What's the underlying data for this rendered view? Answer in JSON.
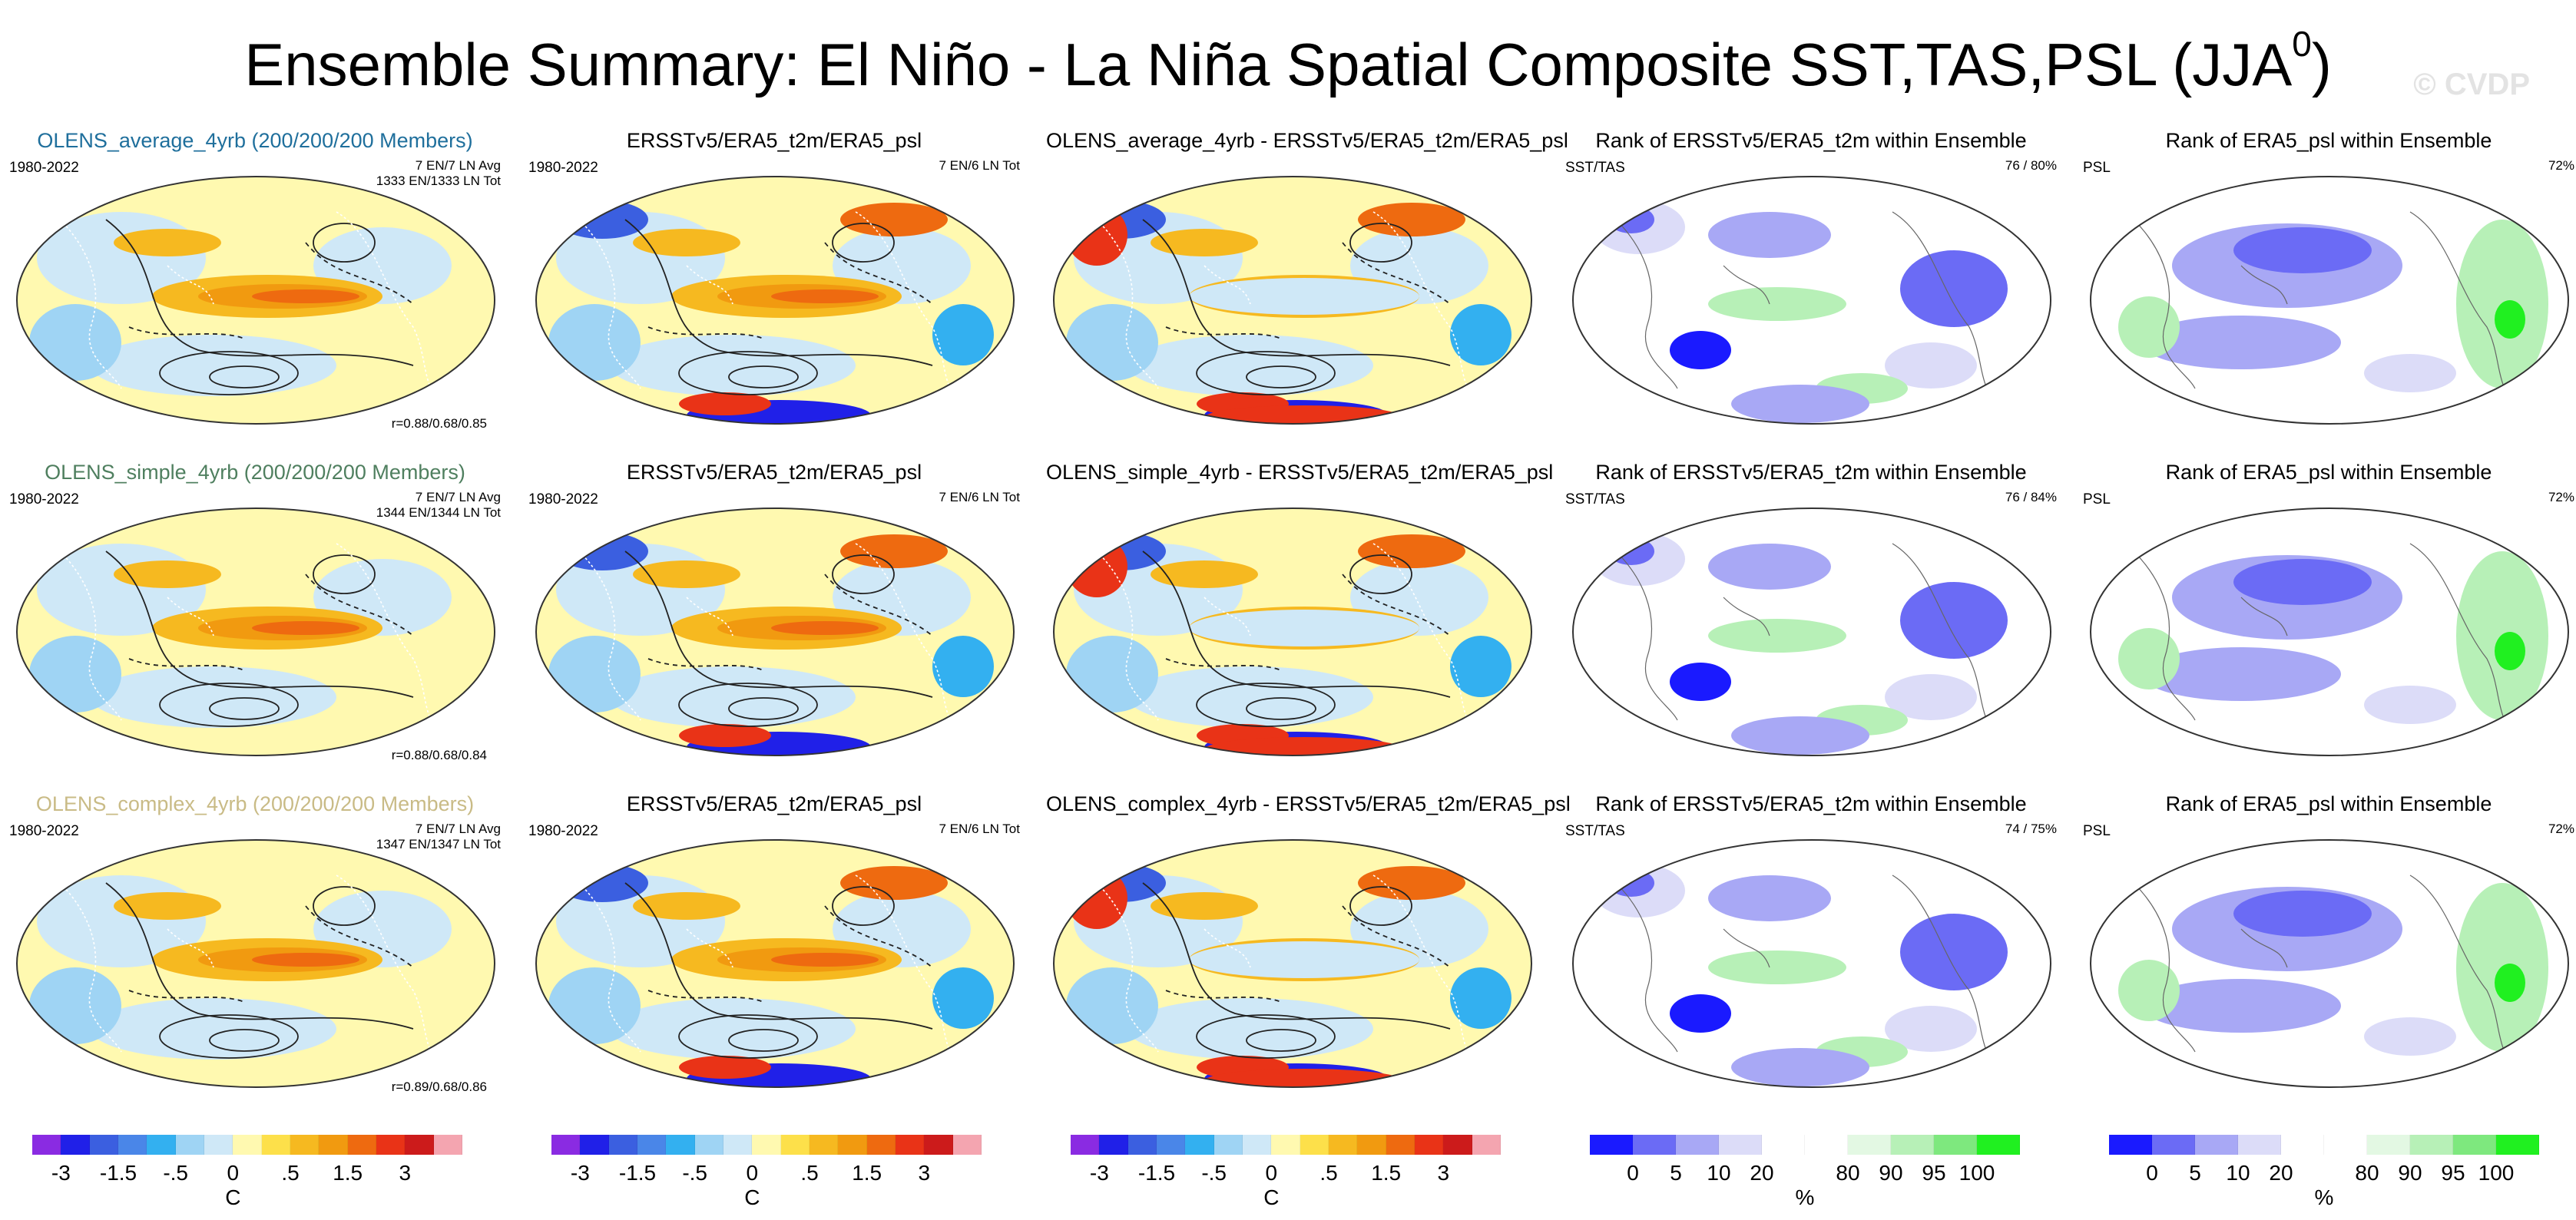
{
  "figure": {
    "title_main": "Ensemble Summary: El Niño - La Niña Spatial Composite SST,TAS,PSL (JJA",
    "title_sup": "0",
    "title_close": ")",
    "watermark": "© CVDP"
  },
  "rows": [
    {
      "panels": [
        {
          "title": "OLENS_average_4yrb (200/200/200 Members)",
          "left": "1980-2022",
          "right": [
            "7 EN/7 LN Avg",
            "1333 EN/1333 LN Tot"
          ],
          "corr": "r=0.88/0.68/0.85",
          "kind": "ens"
        },
        {
          "title": "ERSSTv5/ERA5_t2m/ERA5_psl",
          "left": "1980-2022",
          "right": [
            "7 EN/6 LN Tot"
          ],
          "corr": "",
          "kind": "obs"
        },
        {
          "title": "OLENS_average_4yrb - ERSSTv5/ERA5_t2m/ERA5_psl",
          "left": "",
          "right": [],
          "corr": "",
          "kind": "diff"
        },
        {
          "title": "Rank of ERSSTv5/ERA5_t2m within Ensemble",
          "left": "SST/TAS",
          "right": [
            "76 /  80%"
          ],
          "corr": "",
          "kind": "rank"
        },
        {
          "title": "Rank of ERA5_psl within Ensemble",
          "left": "PSL",
          "right": [
            "72%"
          ],
          "corr": "",
          "kind": "rankpsl"
        }
      ]
    },
    {
      "panels": [
        {
          "title": "OLENS_simple_4yrb (200/200/200 Members)",
          "left": "1980-2022",
          "right": [
            "7 EN/7 LN Avg",
            "1344 EN/1344 LN Tot"
          ],
          "corr": "r=0.88/0.68/0.84",
          "kind": "ens"
        },
        {
          "title": "ERSSTv5/ERA5_t2m/ERA5_psl",
          "left": "1980-2022",
          "right": [
            "7 EN/6 LN Tot"
          ],
          "corr": "",
          "kind": "obs"
        },
        {
          "title": "OLENS_simple_4yrb - ERSSTv5/ERA5_t2m/ERA5_psl",
          "left": "",
          "right": [],
          "corr": "",
          "kind": "diff"
        },
        {
          "title": "Rank of ERSSTv5/ERA5_t2m within Ensemble",
          "left": "SST/TAS",
          "right": [
            "76 /  84%"
          ],
          "corr": "",
          "kind": "rank"
        },
        {
          "title": "Rank of ERA5_psl within Ensemble",
          "left": "PSL",
          "right": [
            "72%"
          ],
          "corr": "",
          "kind": "rankpsl"
        }
      ]
    },
    {
      "panels": [
        {
          "title": "OLENS_complex_4yrb (200/200/200 Members)",
          "left": "1980-2022",
          "right": [
            "7 EN/7 LN Avg",
            "1347 EN/1347 LN Tot"
          ],
          "corr": "r=0.89/0.68/0.86",
          "kind": "ens"
        },
        {
          "title": "ERSSTv5/ERA5_t2m/ERA5_psl",
          "left": "1980-2022",
          "right": [
            "7 EN/6 LN Tot"
          ],
          "corr": "",
          "kind": "obs"
        },
        {
          "title": "OLENS_complex_4yrb - ERSSTv5/ERA5_t2m/ERA5_psl",
          "left": "",
          "right": [],
          "corr": "",
          "kind": "diff"
        },
        {
          "title": "Rank of ERSSTv5/ERA5_t2m within Ensemble",
          "left": "SST/TAS",
          "right": [
            "74 /  75%"
          ],
          "corr": "",
          "kind": "rank"
        },
        {
          "title": "Rank of ERA5_psl within Ensemble",
          "left": "PSL",
          "right": [
            "72%"
          ],
          "corr": "",
          "kind": "rankpsl"
        }
      ]
    }
  ],
  "chart_data": {
    "type": "heatmap",
    "description_values": "Global maps of composite anomalies; colorbars below",
    "colorbars": [
      {
        "name": "temperature",
        "colors": [
          "#8a2be2",
          "#2020e8",
          "#3b5fe0",
          "#4a86e8",
          "#33b0f0",
          "#9fd4f4",
          "#cfe8f7",
          "#fff9b0",
          "#fde04a",
          "#f6b920",
          "#f19a10",
          "#ee6a10",
          "#e93317",
          "#cc1b1b",
          "#f4a5b0"
        ],
        "ticks": [
          "-3",
          "-1.5",
          "-.5",
          "0",
          ".5",
          "1.5",
          "3"
        ],
        "tick_index": [
          1,
          3,
          5,
          7,
          9,
          11,
          13
        ],
        "unit": "C"
      },
      {
        "name": "rank",
        "colors": [
          "#1a1aff",
          "#6b6bf5",
          "#a8a8f5",
          "#dcdcf8",
          "#ffffff",
          "#ffffff",
          "#e3f8e3",
          "#b7f0b7",
          "#7ee87e",
          "#20f020"
        ],
        "ticks": [
          "0",
          "5",
          "10",
          "20",
          "80",
          "90",
          "95",
          "100"
        ],
        "tick_index": [
          1,
          2,
          3,
          4,
          6,
          7,
          8,
          9
        ],
        "unit": "%"
      }
    ]
  }
}
